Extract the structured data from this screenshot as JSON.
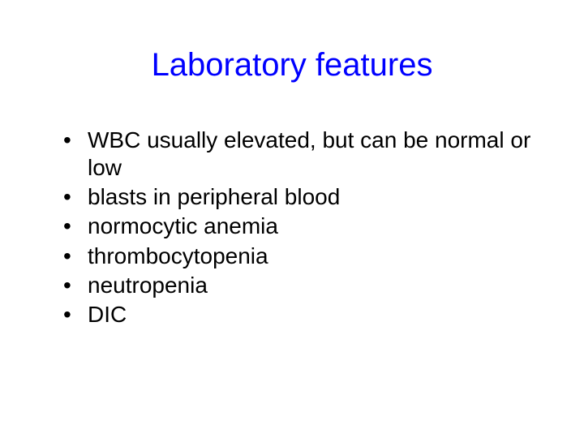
{
  "slide": {
    "title": "Laboratory features",
    "title_color": "#0000ff",
    "title_fontsize": 40,
    "body_color": "#000000",
    "body_fontsize": 28,
    "background_color": "#ffffff",
    "bullets": [
      "WBC usually elevated, but can be normal or low",
      "blasts in peripheral blood",
      "normocytic anemia",
      "thrombocytopenia",
      "neutropenia",
      "DIC"
    ]
  }
}
